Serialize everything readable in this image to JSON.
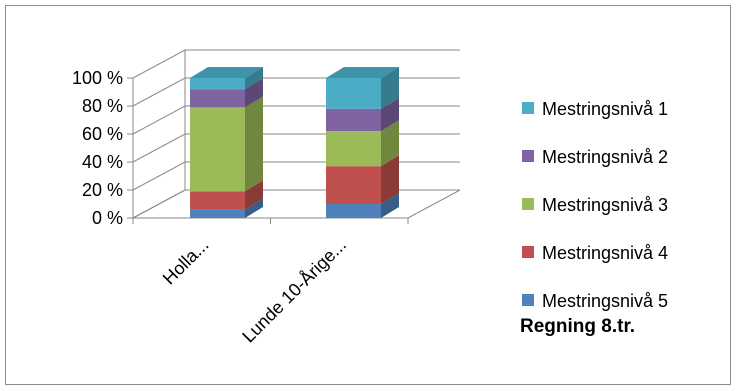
{
  "chart_data": {
    "type": "bar",
    "stacked": true,
    "percent_stacked": true,
    "three_d": true,
    "title": "Regning 8.tr.",
    "categories": [
      "Holla...",
      "Lunde 10-Årige..."
    ],
    "y_ticks": [
      "0 %",
      "20 %",
      "40 %",
      "60 %",
      "80 %",
      "100 %"
    ],
    "ylim": [
      0,
      100
    ],
    "grid": true,
    "legend_position": "right",
    "series": [
      {
        "name": "Mestringsnivå 5",
        "color": "#4F81BD",
        "values": [
          6,
          10
        ]
      },
      {
        "name": "Mestringsnivå 4",
        "color": "#C0504D",
        "values": [
          13,
          27
        ]
      },
      {
        "name": "Mestringsnivå 3",
        "color": "#9BBB59",
        "values": [
          60,
          25
        ]
      },
      {
        "name": "Mestringsnivå 2",
        "color": "#8064A2",
        "values": [
          13,
          16
        ]
      },
      {
        "name": "Mestringsnivå 1",
        "color": "#4BACC6",
        "values": [
          8,
          22
        ]
      }
    ]
  }
}
